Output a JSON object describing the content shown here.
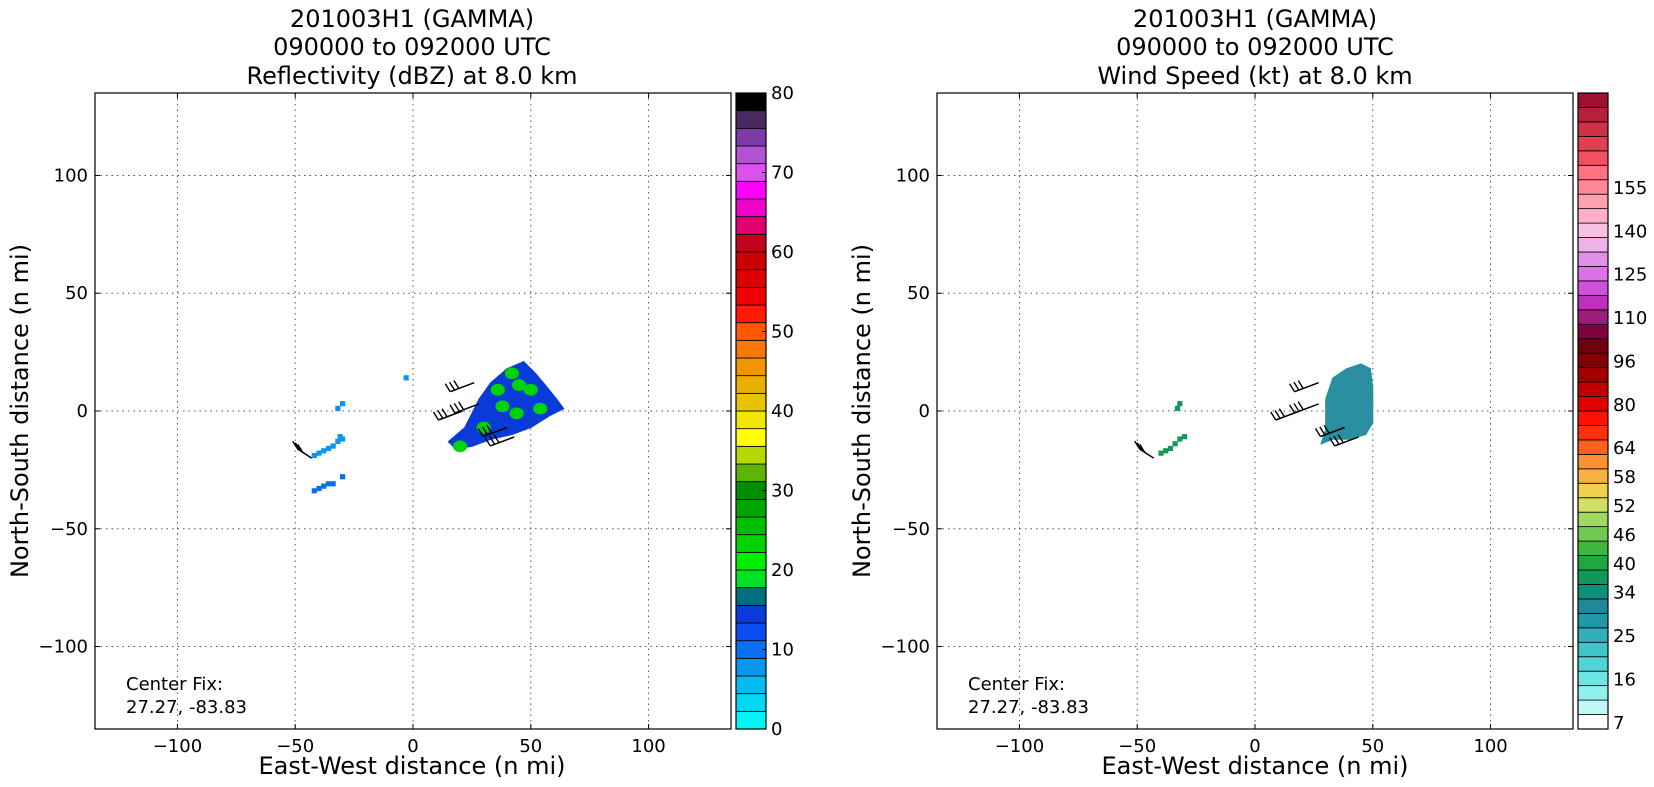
{
  "chart_data": [
    {
      "type": "heatmap",
      "title_lines": [
        "201003H1 (GAMMA)",
        "090000 to 092000 UTC",
        "Reflectivity (dBZ) at 8.0 km"
      ],
      "xlabel": "East-West distance (n mi)",
      "ylabel": "North-South distance (n mi)",
      "xlim": [
        -135,
        135
      ],
      "ylim": [
        -135,
        135
      ],
      "xticks": [
        -100,
        -50,
        0,
        50,
        100
      ],
      "yticks": [
        -100,
        -50,
        0,
        50,
        100
      ],
      "grid": true,
      "annotation_lines": [
        "Center Fix:",
        "27.27, -83.83"
      ],
      "colorbar": {
        "min": 0,
        "max": 80,
        "step": 2.5,
        "ticks": [
          0,
          10,
          20,
          30,
          40,
          50,
          60,
          70,
          80
        ],
        "colors": [
          "#00f5f5",
          "#00d8ef",
          "#00bcf0",
          "#0a95ef",
          "#0870f2",
          "#0a4ef2",
          "#0a3ad8",
          "#00707f",
          "#00e223",
          "#00ec00",
          "#00d400",
          "#00bd00",
          "#00a600",
          "#008f00",
          "#5fb400",
          "#b4d800",
          "#ffff00",
          "#f0e600",
          "#e6c400",
          "#eab000",
          "#f09400",
          "#fa7800",
          "#ff5a00",
          "#ff1a00",
          "#f00000",
          "#dc0000",
          "#cc0000",
          "#c4001c",
          "#e00070",
          "#f000c8",
          "#ff00ff",
          "#dc50ec",
          "#b054d4",
          "#7c3ca8",
          "#4a2a5e",
          "#000000"
        ]
      },
      "features": [
        {
          "name": "western-band",
          "value_dbz": 7,
          "color": "#0a95ef",
          "cells": [
            [
              -43,
              -20
            ],
            [
              -41,
              -19
            ],
            [
              -39,
              -18
            ],
            [
              -37,
              -17
            ],
            [
              -35,
              -16
            ],
            [
              -33,
              -14
            ],
            [
              -32,
              -12
            ],
            [
              -31,
              -13
            ]
          ]
        },
        {
          "name": "western-spot",
          "value_dbz": 7,
          "color": "#0a95ef",
          "cells": [
            [
              -33,
              0
            ],
            [
              -31,
              2
            ]
          ]
        },
        {
          "name": "southwest-band",
          "value_dbz": 12,
          "color": "#0870f2",
          "cells": [
            [
              -43,
              -35
            ],
            [
              -41,
              -34
            ],
            [
              -39,
              -33
            ],
            [
              -37,
              -32
            ],
            [
              -35,
              -32
            ],
            [
              -31,
              -29
            ]
          ]
        },
        {
          "name": "isolated-cell",
          "value_dbz": 5,
          "color": "#0a95ef",
          "cells": [
            [
              -4,
              13
            ]
          ]
        },
        {
          "name": "main-area",
          "value_dbz": 15,
          "color": "#0a3ad8",
          "polygon": [
            [
              15,
              -13
            ],
            [
              22,
              -7
            ],
            [
              28,
              5
            ],
            [
              33,
              12
            ],
            [
              40,
              18
            ],
            [
              47,
              21
            ],
            [
              52,
              16
            ],
            [
              57,
              10
            ],
            [
              61,
              5
            ],
            [
              64,
              1
            ],
            [
              58,
              -2
            ],
            [
              50,
              -7
            ],
            [
              42,
              -10
            ],
            [
              33,
              -12
            ],
            [
              25,
              -15
            ],
            [
              18,
              -16
            ]
          ]
        },
        {
          "name": "embedded-green",
          "value_dbz": 22,
          "color": "#00d400",
          "patches": [
            [
              45,
              11
            ],
            [
              50,
              9
            ],
            [
              38,
              2
            ],
            [
              44,
              -1
            ],
            [
              54,
              1
            ],
            [
              30,
              -7
            ],
            [
              20,
              -15
            ],
            [
              36,
              9
            ],
            [
              42,
              16
            ]
          ]
        }
      ],
      "barbs": [
        {
          "x": 26,
          "y": 12,
          "dir": "sw"
        },
        {
          "x": 21,
          "y": 0,
          "dir": "sw"
        },
        {
          "x": 28,
          "y": 3,
          "dir": "sw"
        },
        {
          "x": 40,
          "y": -7,
          "dir": "sw"
        },
        {
          "x": 43,
          "y": -11,
          "dir": "sw"
        },
        {
          "x": -43,
          "y": -20,
          "dir": "w"
        }
      ]
    },
    {
      "type": "heatmap",
      "title_lines": [
        "201003H1 (GAMMA)",
        "090000 to 092000 UTC",
        "Wind Speed (kt) at 8.0 km"
      ],
      "xlabel": "East-West distance (n mi)",
      "ylabel": "North-South distance (n mi)",
      "xlim": [
        -135,
        135
      ],
      "ylim": [
        -135,
        135
      ],
      "xticks": [
        -100,
        -50,
        0,
        50,
        100
      ],
      "yticks": [
        -100,
        -50,
        0,
        50,
        100
      ],
      "grid": true,
      "annotation_lines": [
        "Center Fix:",
        "27.27, -83.83"
      ],
      "colorbar": {
        "tick_labels": [
          "7",
          "16",
          "25",
          "34",
          "40",
          "46",
          "52",
          "58",
          "64",
          "80",
          "96",
          "110",
          "125",
          "140",
          "155"
        ],
        "tick_index": [
          0,
          3,
          6,
          9,
          11,
          13,
          15,
          17,
          19,
          22,
          25,
          28,
          31,
          34,
          37
        ],
        "colors": [
          "#ffffff",
          "#c0f8f8",
          "#90f0f0",
          "#70e4e4",
          "#50d4d8",
          "#40c4c8",
          "#30b0b8",
          "#2098a8",
          "#208898",
          "#10907a",
          "#109858",
          "#20a840",
          "#40b840",
          "#70c850",
          "#a0d860",
          "#d0e060",
          "#f0d050",
          "#f8b040",
          "#ff9030",
          "#ff6020",
          "#ff3010",
          "#ff1000",
          "#e00000",
          "#c00000",
          "#a00000",
          "#800000",
          "#700010",
          "#800040",
          "#a01c7c",
          "#c030c0",
          "#d050e0",
          "#e070e8",
          "#e090e8",
          "#f0b0e8",
          "#f8c0e0",
          "#ffb0c8",
          "#ffa0b0",
          "#ff8898",
          "#ff7080",
          "#f05060",
          "#e04050",
          "#d03048",
          "#b82038",
          "#a01030"
        ]
      },
      "features": [
        {
          "name": "western-band",
          "value_kt": 31,
          "color": "#109858",
          "cells": [
            [
              -41,
              -19
            ],
            [
              -39,
              -18
            ],
            [
              -37,
              -17
            ],
            [
              -35,
              -15
            ],
            [
              -33,
              -13
            ],
            [
              -31,
              -12
            ]
          ]
        },
        {
          "name": "western-spot",
          "value_kt": 31,
          "color": "#109858",
          "cells": [
            [
              -34,
              0
            ],
            [
              -33,
              2
            ]
          ]
        },
        {
          "name": "main-area",
          "value_kt": 26,
          "color": "#2a8fa0",
          "polygon": [
            [
              30,
              -8
            ],
            [
              30,
              5
            ],
            [
              33,
              14
            ],
            [
              39,
              18
            ],
            [
              45,
              20
            ],
            [
              49,
              18
            ],
            [
              50,
              10
            ],
            [
              50,
              -5
            ],
            [
              47,
              -10
            ],
            [
              40,
              -12
            ],
            [
              33,
              -12
            ],
            [
              28,
              -14
            ]
          ]
        }
      ],
      "barbs": [
        {
          "x": 27,
          "y": 12,
          "dir": "sw"
        },
        {
          "x": 19,
          "y": 0,
          "dir": "sw"
        },
        {
          "x": 27,
          "y": 3,
          "dir": "sw"
        },
        {
          "x": 38,
          "y": -7,
          "dir": "sw"
        },
        {
          "x": 44,
          "y": -11,
          "dir": "sw"
        },
        {
          "x": -43,
          "y": -20,
          "dir": "w"
        }
      ]
    }
  ]
}
